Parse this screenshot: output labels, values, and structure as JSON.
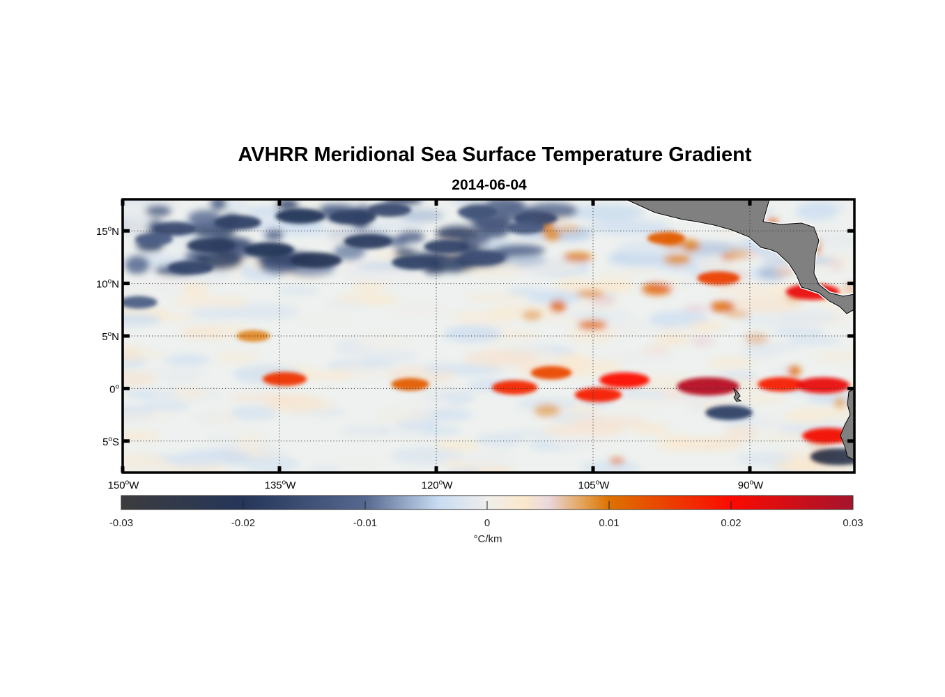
{
  "title": "AVHRR Meridional Sea Surface Temperature Gradient",
  "subtitle": "2014-06-04",
  "chart_data": {
    "type": "heatmap",
    "title": "AVHRR Meridional Sea Surface Temperature Gradient",
    "subtitle": "2014-06-04",
    "variable": "Meridional SST gradient",
    "units": "°C/km",
    "lon_range": [
      -150,
      -80
    ],
    "lat_range": [
      -8,
      18
    ],
    "x_ticks": [
      {
        "value": -150,
        "num": "150",
        "hemi": "W"
      },
      {
        "value": -135,
        "num": "135",
        "hemi": "W"
      },
      {
        "value": -120,
        "num": "120",
        "hemi": "W"
      },
      {
        "value": -105,
        "num": "105",
        "hemi": "W"
      },
      {
        "value": -90,
        "num": "90",
        "hemi": "W"
      }
    ],
    "y_ticks": [
      {
        "value": 15,
        "num": "15",
        "hemi": "N"
      },
      {
        "value": 10,
        "num": "10",
        "hemi": "N"
      },
      {
        "value": 5,
        "num": "5",
        "hemi": "N"
      },
      {
        "value": 0,
        "num": "0",
        "hemi": ""
      },
      {
        "value": -5,
        "num": "5",
        "hemi": "S"
      }
    ],
    "grid": true,
    "colorbar": {
      "range": [
        -0.03,
        0.03
      ],
      "ticks": [
        "-0.03",
        "-0.02",
        "-0.01",
        "0",
        "0.01",
        "0.02",
        "0.03"
      ],
      "tick_values": [
        -0.03,
        -0.02,
        -0.01,
        0,
        0.01,
        0.02,
        0.03
      ],
      "label": "°C/km",
      "location": "bottom",
      "colormap": [
        {
          "v": -0.03,
          "c": "#3c3c3e"
        },
        {
          "v": -0.02,
          "c": "#25365a"
        },
        {
          "v": -0.01,
          "c": "#56688f"
        },
        {
          "v": -0.004,
          "c": "#c8dcf2"
        },
        {
          "v": 0,
          "c": "#eeeeec"
        },
        {
          "v": 0.003,
          "c": "#fbe8cc"
        },
        {
          "v": 0.005,
          "c": "#ead8de"
        },
        {
          "v": 0.008,
          "c": "#e3a050"
        },
        {
          "v": 0.01,
          "c": "#dd7200"
        },
        {
          "v": 0.02,
          "c": "#fb0a00"
        },
        {
          "v": 0.03,
          "c": "#a5142e"
        }
      ]
    },
    "features": [
      {
        "lon": -139,
        "lat": 15.8,
        "value": -0.018
      },
      {
        "lon": -145,
        "lat": 15.2,
        "value": -0.016
      },
      {
        "lon": -141.5,
        "lat": 13.6,
        "value": -0.019
      },
      {
        "lon": -147,
        "lat": 14.2,
        "value": -0.012
      },
      {
        "lon": -143.5,
        "lat": 11.5,
        "value": -0.017
      },
      {
        "lon": -136,
        "lat": 13.2,
        "value": -0.02
      },
      {
        "lon": -131.5,
        "lat": 12.2,
        "value": -0.021
      },
      {
        "lon": -133,
        "lat": 16.4,
        "value": -0.02
      },
      {
        "lon": -128,
        "lat": 16.3,
        "value": -0.018
      },
      {
        "lon": -126.5,
        "lat": 14,
        "value": -0.019
      },
      {
        "lon": -124.5,
        "lat": 17,
        "value": -0.016
      },
      {
        "lon": -122,
        "lat": 12,
        "value": -0.018
      },
      {
        "lon": -119,
        "lat": 13.5,
        "value": -0.017
      },
      {
        "lon": -115.5,
        "lat": 12.4,
        "value": -0.015
      },
      {
        "lon": -116,
        "lat": 16.8,
        "value": -0.014
      },
      {
        "lon": -110.5,
        "lat": 16.2,
        "value": -0.016
      },
      {
        "lon": -111.5,
        "lat": 15.3,
        "value": -0.013
      },
      {
        "lon": -148.5,
        "lat": 8.2,
        "value": -0.012
      },
      {
        "lon": -137.5,
        "lat": 5.0,
        "value": 0.009
      },
      {
        "lon": -134.5,
        "lat": 0.9,
        "value": 0.016
      },
      {
        "lon": -122.5,
        "lat": 0.4,
        "value": 0.012
      },
      {
        "lon": -112.5,
        "lat": 0.1,
        "value": 0.017
      },
      {
        "lon": -109,
        "lat": 1.5,
        "value": 0.014
      },
      {
        "lon": -102,
        "lat": 0.8,
        "value": 0.02
      },
      {
        "lon": -104.5,
        "lat": -0.6,
        "value": 0.018
      },
      {
        "lon": -94,
        "lat": 0.2,
        "value": 0.028
      },
      {
        "lon": -87,
        "lat": 0.4,
        "value": 0.018
      },
      {
        "lon": -83,
        "lat": 0.3,
        "value": 0.022
      },
      {
        "lon": -98,
        "lat": 14.3,
        "value": 0.012
      },
      {
        "lon": -93,
        "lat": 10.5,
        "value": 0.015
      },
      {
        "lon": -84,
        "lat": 9.2,
        "value": 0.022
      },
      {
        "lon": -92,
        "lat": -2.3,
        "value": -0.018
      },
      {
        "lon": -81.5,
        "lat": -6.5,
        "value": -0.024
      },
      {
        "lon": -82.5,
        "lat": -4.5,
        "value": 0.021
      }
    ]
  }
}
